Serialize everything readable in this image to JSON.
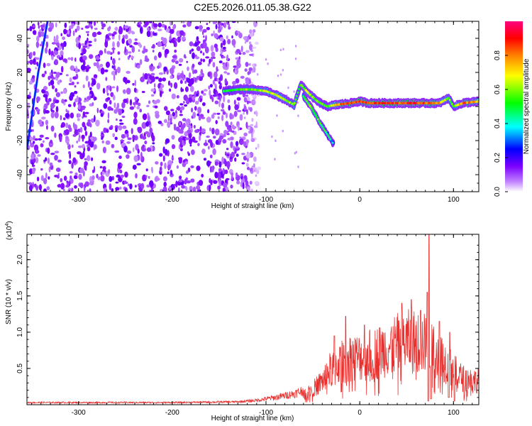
{
  "title": "C2E5.2026.011.05.38.G22",
  "chart_data": [
    {
      "type": "heatmap",
      "name": "spectrogram",
      "xlabel": "Height of straight line (km)",
      "ylabel": "Frequency (Hz)",
      "xlim": [
        -355,
        127
      ],
      "ylim": [
        -50,
        50
      ],
      "xticks": [
        -300,
        -200,
        -100,
        0,
        100
      ],
      "yticks": [
        -40,
        -20,
        0,
        20,
        40
      ],
      "colorbar": {
        "label": "Normalized spectral amplitude",
        "range": [
          0,
          1
        ],
        "ticks": [
          0.0,
          0.2,
          0.4,
          0.6,
          0.8
        ],
        "tick_labels": [
          "0.0",
          "0.2",
          "0.4",
          "0.6",
          "0.8"
        ],
        "colors": [
          "#ffffff",
          "#7b00ff",
          "#0000ff",
          "#00ffff",
          "#00ff00",
          "#ffff00",
          "#ff8000",
          "#ff0000",
          "#ff0080"
        ]
      },
      "noise_region": [
        -355,
        -125
      ],
      "ridge": [
        {
          "x": -145,
          "f": 9,
          "a": 0.45
        },
        {
          "x": -130,
          "f": 10,
          "a": 0.5
        },
        {
          "x": -115,
          "f": 10,
          "a": 0.55
        },
        {
          "x": -100,
          "f": 9,
          "a": 0.6
        },
        {
          "x": -90,
          "f": 7,
          "a": 0.6
        },
        {
          "x": -80,
          "f": 4,
          "a": 0.6
        },
        {
          "x": -70,
          "f": 1,
          "a": 0.55
        },
        {
          "x": -63,
          "f": 13,
          "a": 0.5
        },
        {
          "x": -55,
          "f": 8,
          "a": 0.6
        },
        {
          "x": -45,
          "f": 3,
          "a": 0.55
        },
        {
          "x": -35,
          "f": 0,
          "a": 0.5
        },
        {
          "x": -25,
          "f": 1,
          "a": 0.75
        },
        {
          "x": -10,
          "f": 2,
          "a": 0.8
        },
        {
          "x": 0,
          "f": 3,
          "a": 0.85
        },
        {
          "x": 10,
          "f": 2,
          "a": 0.8
        },
        {
          "x": 25,
          "f": 2,
          "a": 0.85
        },
        {
          "x": 40,
          "f": 2,
          "a": 0.8
        },
        {
          "x": 55,
          "f": 2,
          "a": 0.85
        },
        {
          "x": 70,
          "f": 2,
          "a": 0.8
        },
        {
          "x": 85,
          "f": 2,
          "a": 0.75
        },
        {
          "x": 95,
          "f": 5,
          "a": 0.55
        },
        {
          "x": 100,
          "f": 0,
          "a": 0.5
        },
        {
          "x": 110,
          "f": 2,
          "a": 0.8
        },
        {
          "x": 127,
          "f": 3,
          "a": 0.7
        }
      ],
      "branch": [
        {
          "x": -60,
          "f": 6,
          "a": 0.5
        },
        {
          "x": -50,
          "f": -2,
          "a": 0.55
        },
        {
          "x": -42,
          "f": -10,
          "a": 0.5
        },
        {
          "x": -35,
          "f": -16,
          "a": 0.45
        },
        {
          "x": -28,
          "f": -22,
          "a": 0.3
        }
      ],
      "line_feature": [
        {
          "x": -355,
          "f": -25
        },
        {
          "x": -343,
          "f": 20
        },
        {
          "x": -333,
          "f": 50
        }
      ]
    },
    {
      "type": "line",
      "name": "snr",
      "xlabel": "Height of straight line (km)",
      "ylabel": "SNR (10 * v/v)",
      "yscale_label": "(x10",
      "yscale_exponent": "4",
      "xlim": [
        -355,
        127
      ],
      "ylim": [
        0,
        2.35
      ],
      "xticks": [
        -300,
        -200,
        -100,
        0,
        100
      ],
      "yticks": [
        0.5,
        1.0,
        1.5,
        2.0
      ],
      "ytick_labels": [
        "0.5",
        "1.0",
        "1.5",
        "2.0"
      ],
      "color": "#e8312f",
      "envelope": [
        {
          "x": -355,
          "v": 0.03
        },
        {
          "x": -200,
          "v": 0.03
        },
        {
          "x": -130,
          "v": 0.04
        },
        {
          "x": -110,
          "v": 0.06
        },
        {
          "x": -90,
          "v": 0.1
        },
        {
          "x": -70,
          "v": 0.15
        },
        {
          "x": -60,
          "v": 0.2
        },
        {
          "x": -50,
          "v": 0.3
        },
        {
          "x": -40,
          "v": 0.45
        },
        {
          "x": -30,
          "v": 0.7
        },
        {
          "x": -20,
          "v": 0.8
        },
        {
          "x": -10,
          "v": 0.9
        },
        {
          "x": 0,
          "v": 0.9
        },
        {
          "x": 10,
          "v": 0.95
        },
        {
          "x": 20,
          "v": 1.0
        },
        {
          "x": 30,
          "v": 1.1
        },
        {
          "x": 40,
          "v": 1.15
        },
        {
          "x": 50,
          "v": 1.2
        },
        {
          "x": 60,
          "v": 1.2
        },
        {
          "x": 70,
          "v": 1.15
        },
        {
          "x": 80,
          "v": 1.05
        },
        {
          "x": 90,
          "v": 0.85
        },
        {
          "x": 100,
          "v": 0.65
        },
        {
          "x": 110,
          "v": 0.5
        },
        {
          "x": 127,
          "v": 0.45
        }
      ],
      "peaks": [
        {
          "x": -27,
          "v": 0.95
        },
        {
          "x": -15,
          "v": 1.22
        },
        {
          "x": 5,
          "v": 1.1
        },
        {
          "x": 45,
          "v": 1.4
        },
        {
          "x": 55,
          "v": 1.45
        },
        {
          "x": 65,
          "v": 1.3
        },
        {
          "x": 72,
          "v": 1.55
        },
        {
          "x": 74,
          "v": 2.35
        },
        {
          "x": 85,
          "v": 1.15
        },
        {
          "x": 96,
          "v": 1.0
        }
      ],
      "dips": [
        {
          "x": 73,
          "v": 0.05
        },
        {
          "x": 76,
          "v": 0.08
        },
        {
          "x": 95,
          "v": 0.1
        },
        {
          "x": 101,
          "v": 0.05
        }
      ]
    }
  ]
}
